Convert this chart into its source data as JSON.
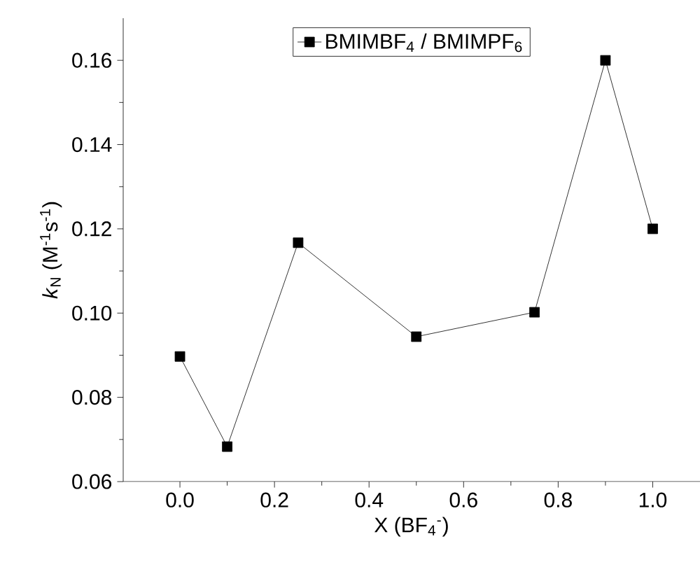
{
  "chart_data": {
    "type": "line",
    "xlabel": "X (BF$_{4}$$^{-}$)",
    "ylabel": "*k*$_{N}$ (M$^{-1}$s$^{-1}$)",
    "x": [
      0.0,
      0.1,
      0.25,
      0.5,
      0.75,
      0.9,
      1.0
    ],
    "series": [
      {
        "name": "BMIMBF$_{4}$ / BMIMPF$_{6}$",
        "color": "#000000",
        "values": [
          0.0897,
          0.0683,
          0.1167,
          0.0944,
          0.1002,
          0.16,
          0.12
        ]
      }
    ],
    "xlim": [
      -0.12,
      1.1
    ],
    "ylim": [
      0.06,
      0.17
    ],
    "xticks": [
      {
        "value": 0,
        "label": "0.0"
      },
      0.2,
      0.4,
      0.6,
      0.8,
      {
        "value": 1,
        "label": "1.0"
      }
    ],
    "yticks": [
      0.06,
      0.08,
      {
        "value": 0.1,
        "label": "0.10"
      },
      0.12,
      0.14,
      0.16
    ],
    "marker": "square",
    "line_style": "solid",
    "legend": "top",
    "grid": false
  }
}
